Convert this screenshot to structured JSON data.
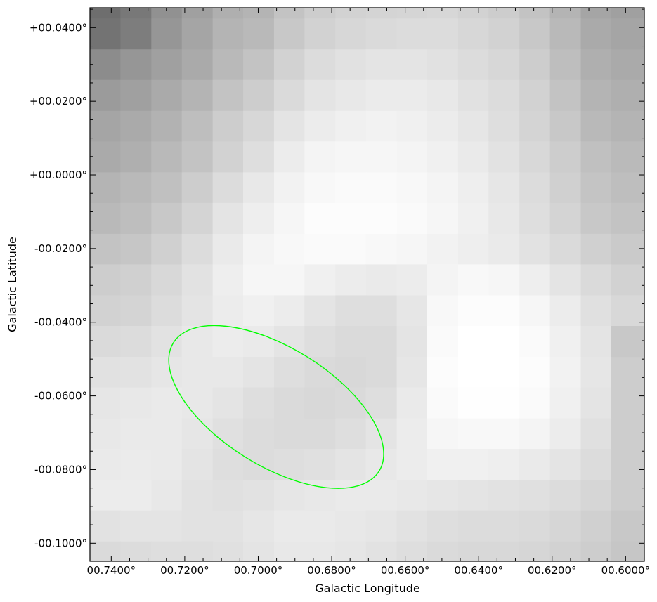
{
  "chart_data": {
    "type": "heatmap",
    "title": "",
    "xlabel": "Galactic Longitude",
    "ylabel": "Galactic Latitude",
    "xlim": [
      0.7458,
      0.5949
    ],
    "ylim": [
      -0.1049,
      0.0454
    ],
    "x_ticks": [
      0.74,
      0.72,
      0.7,
      0.68,
      0.66,
      0.64,
      0.62,
      0.6
    ],
    "x_tick_labels": [
      "00.7400°",
      "00.7200°",
      "00.7000°",
      "00.6800°",
      "00.6600°",
      "00.6400°",
      "00.6200°",
      "00.6000°"
    ],
    "y_ticks": [
      0.04,
      0.02,
      0.0,
      -0.02,
      -0.04,
      -0.06,
      -0.08,
      -0.1
    ],
    "y_tick_labels": [
      "+00.0400°",
      "+00.0200°",
      "+00.0000°",
      "-00.0200°",
      "-00.0400°",
      "-00.0600°",
      "-00.0800°",
      "-00.1000°"
    ],
    "colormap": "grayscale",
    "pixel_grid": {
      "x_edges": [
        0.7458,
        0.7375,
        0.7291,
        0.7208,
        0.7124,
        0.7041,
        0.6957,
        0.6874,
        0.679,
        0.6707,
        0.6623,
        0.654,
        0.6456,
        0.6373,
        0.6289,
        0.6206,
        0.6122,
        0.6039,
        0.5955,
        0.5949
      ],
      "y_edges": [
        0.0454,
        0.0425,
        0.0341,
        0.0258,
        0.0174,
        0.0091,
        0.0007,
        -0.0076,
        -0.016,
        -0.0243,
        -0.0327,
        -0.041,
        -0.0494,
        -0.0577,
        -0.0661,
        -0.0744,
        -0.0828,
        -0.0911,
        -0.0995,
        -0.1049
      ],
      "rows": [
        [
          110,
          120,
          145,
          160,
          175,
          180,
          195,
          205,
          210,
          212,
          213,
          215,
          210,
          205,
          195,
          180,
          165,
          160,
          160
        ],
        [
          115,
          125,
          150,
          165,
          180,
          185,
          200,
          210,
          215,
          218,
          220,
          220,
          215,
          210,
          200,
          185,
          170,
          165,
          165
        ],
        [
          140,
          150,
          160,
          170,
          185,
          195,
          210,
          220,
          225,
          228,
          228,
          225,
          220,
          215,
          205,
          190,
          175,
          170,
          170
        ],
        [
          155,
          160,
          170,
          180,
          195,
          205,
          218,
          228,
          232,
          235,
          235,
          232,
          225,
          220,
          210,
          195,
          180,
          175,
          175
        ],
        [
          165,
          170,
          178,
          190,
          205,
          215,
          228,
          236,
          240,
          242,
          240,
          236,
          230,
          222,
          212,
          200,
          185,
          180,
          180
        ],
        [
          170,
          175,
          185,
          195,
          210,
          222,
          236,
          244,
          246,
          246,
          244,
          240,
          234,
          226,
          216,
          205,
          192,
          186,
          186
        ],
        [
          180,
          185,
          192,
          205,
          220,
          232,
          242,
          248,
          250,
          250,
          248,
          244,
          238,
          230,
          220,
          208,
          196,
          190,
          190
        ],
        [
          185,
          190,
          200,
          212,
          228,
          238,
          246,
          252,
          252,
          252,
          250,
          246,
          240,
          232,
          222,
          212,
          200,
          195,
          195
        ],
        [
          195,
          198,
          208,
          220,
          234,
          244,
          248,
          250,
          250,
          248,
          246,
          242,
          238,
          234,
          226,
          218,
          208,
          202,
          202
        ],
        [
          205,
          208,
          216,
          226,
          238,
          246,
          246,
          240,
          236,
          234,
          236,
          244,
          248,
          246,
          238,
          228,
          218,
          210,
          210
        ],
        [
          210,
          212,
          220,
          228,
          236,
          240,
          236,
          228,
          222,
          222,
          230,
          248,
          252,
          252,
          246,
          236,
          224,
          216,
          216
        ],
        [
          218,
          220,
          226,
          232,
          236,
          234,
          228,
          222,
          218,
          218,
          228,
          250,
          255,
          255,
          250,
          240,
          228,
          200,
          200
        ],
        [
          225,
          226,
          230,
          232,
          232,
          228,
          222,
          218,
          216,
          218,
          230,
          252,
          255,
          255,
          252,
          242,
          230,
          205,
          205
        ],
        [
          230,
          232,
          234,
          232,
          228,
          222,
          218,
          216,
          218,
          222,
          234,
          250,
          254,
          254,
          250,
          240,
          228,
          205,
          205
        ],
        [
          232,
          234,
          234,
          230,
          224,
          220,
          218,
          218,
          222,
          228,
          236,
          246,
          248,
          248,
          244,
          236,
          224,
          205,
          205
        ],
        [
          234,
          235,
          234,
          228,
          222,
          220,
          222,
          224,
          228,
          232,
          236,
          240,
          240,
          238,
          234,
          228,
          220,
          205,
          205
        ],
        [
          236,
          236,
          232,
          226,
          224,
          226,
          230,
          232,
          234,
          234,
          232,
          230,
          228,
          226,
          224,
          220,
          214,
          205,
          205
        ],
        [
          226,
          228,
          228,
          226,
          226,
          230,
          234,
          234,
          232,
          230,
          226,
          222,
          220,
          220,
          218,
          214,
          208,
          200,
          200
        ],
        [
          218,
          220,
          222,
          222,
          224,
          228,
          232,
          232,
          230,
          226,
          222,
          218,
          216,
          216,
          214,
          210,
          205,
          198,
          198
        ]
      ]
    },
    "region": {
      "shape": "ellipse",
      "color": "#00ff00",
      "center": [
        0.6951,
        -0.063
      ],
      "semi_major": 0.033,
      "semi_minor": 0.016,
      "angle_deg": -32
    }
  }
}
